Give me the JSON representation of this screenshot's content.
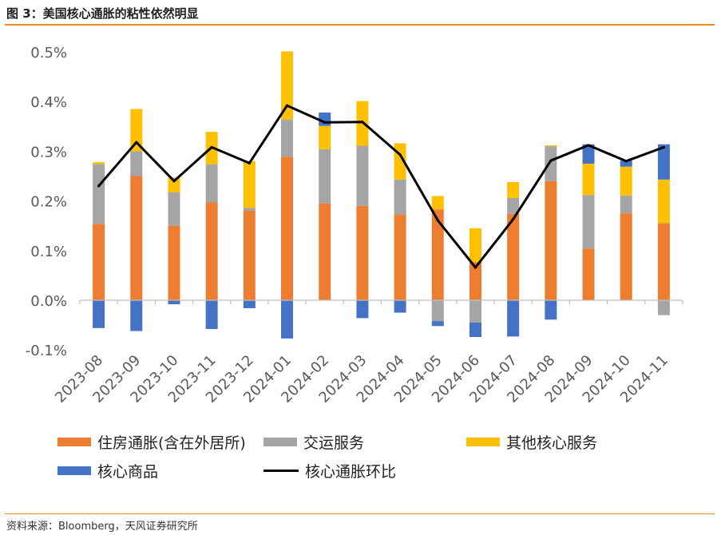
{
  "title": "图 3：美国核心通胀的粘性依然明显",
  "source": "资料来源：Bloomberg，天风证券研究所",
  "chart_data": {
    "type": "bar",
    "stacked": true,
    "categories": [
      "2023-08",
      "2023-09",
      "2023-10",
      "2023-11",
      "2023-12",
      "2024-01",
      "2024-02",
      "2024-03",
      "2024-04",
      "2024-05",
      "2024-06",
      "2024-07",
      "2024-08",
      "2024-09",
      "2024-10",
      "2024-11"
    ],
    "ylim": [
      -0.001,
      0.005
    ],
    "yticks": [
      {
        "v": 0.005,
        "label": "0.5%"
      },
      {
        "v": 0.004,
        "label": "0.4%"
      },
      {
        "v": 0.003,
        "label": "0.3%"
      },
      {
        "v": 0.002,
        "label": "0.2%"
      },
      {
        "v": 0.001,
        "label": "0.1%"
      },
      {
        "v": 0.0,
        "label": "0.0%"
      },
      {
        "v": -0.001,
        "label": "-0.1%"
      }
    ],
    "grid": false,
    "legend_position": "bottom",
    "series": [
      {
        "name": "住房通胀(含在外居所)",
        "kind": "bar",
        "color": "#ed7d31",
        "values": [
          0.00154,
          0.0025,
          0.0015,
          0.00197,
          0.0018,
          0.00289,
          0.00195,
          0.0019,
          0.00173,
          0.00183,
          0.00077,
          0.00174,
          0.0024,
          0.00104,
          0.00175,
          0.00155
        ]
      },
      {
        "name": "交运服务",
        "kind": "bar",
        "color": "#a5a5a5",
        "values": [
          0.0012,
          0.0005,
          0.00067,
          0.00077,
          6e-05,
          0.00075,
          0.00109,
          0.00121,
          0.0007,
          -0.00042,
          -0.00045,
          0.00032,
          0.0007,
          0.00108,
          0.00036,
          -0.0003
        ]
      },
      {
        "name": "其他核心服务",
        "kind": "bar",
        "color": "#ffc000",
        "values": [
          4e-05,
          0.00085,
          0.0003,
          0.00065,
          0.00094,
          0.00137,
          0.00047,
          0.0009,
          0.00073,
          0.00027,
          0.00068,
          0.00032,
          2e-05,
          0.00063,
          0.00058,
          0.00088
        ]
      },
      {
        "name": "核心商品",
        "kind": "bar",
        "color": "#4472c4",
        "values": [
          -0.00056,
          -0.00062,
          -8e-05,
          -0.00058,
          -0.00016,
          -0.00077,
          0.00027,
          -0.00036,
          -0.00025,
          -0.0001,
          -0.00029,
          -0.00073,
          -0.00039,
          0.00039,
          0.00012,
          0.00071
        ]
      },
      {
        "name": "核心通胀环比",
        "kind": "line",
        "color": "#000000",
        "values": [
          0.0023,
          0.00318,
          0.0024,
          0.00308,
          0.00276,
          0.00392,
          0.00358,
          0.00359,
          0.00293,
          0.00161,
          0.00066,
          0.00163,
          0.00281,
          0.00312,
          0.0028,
          0.00308
        ]
      }
    ]
  }
}
